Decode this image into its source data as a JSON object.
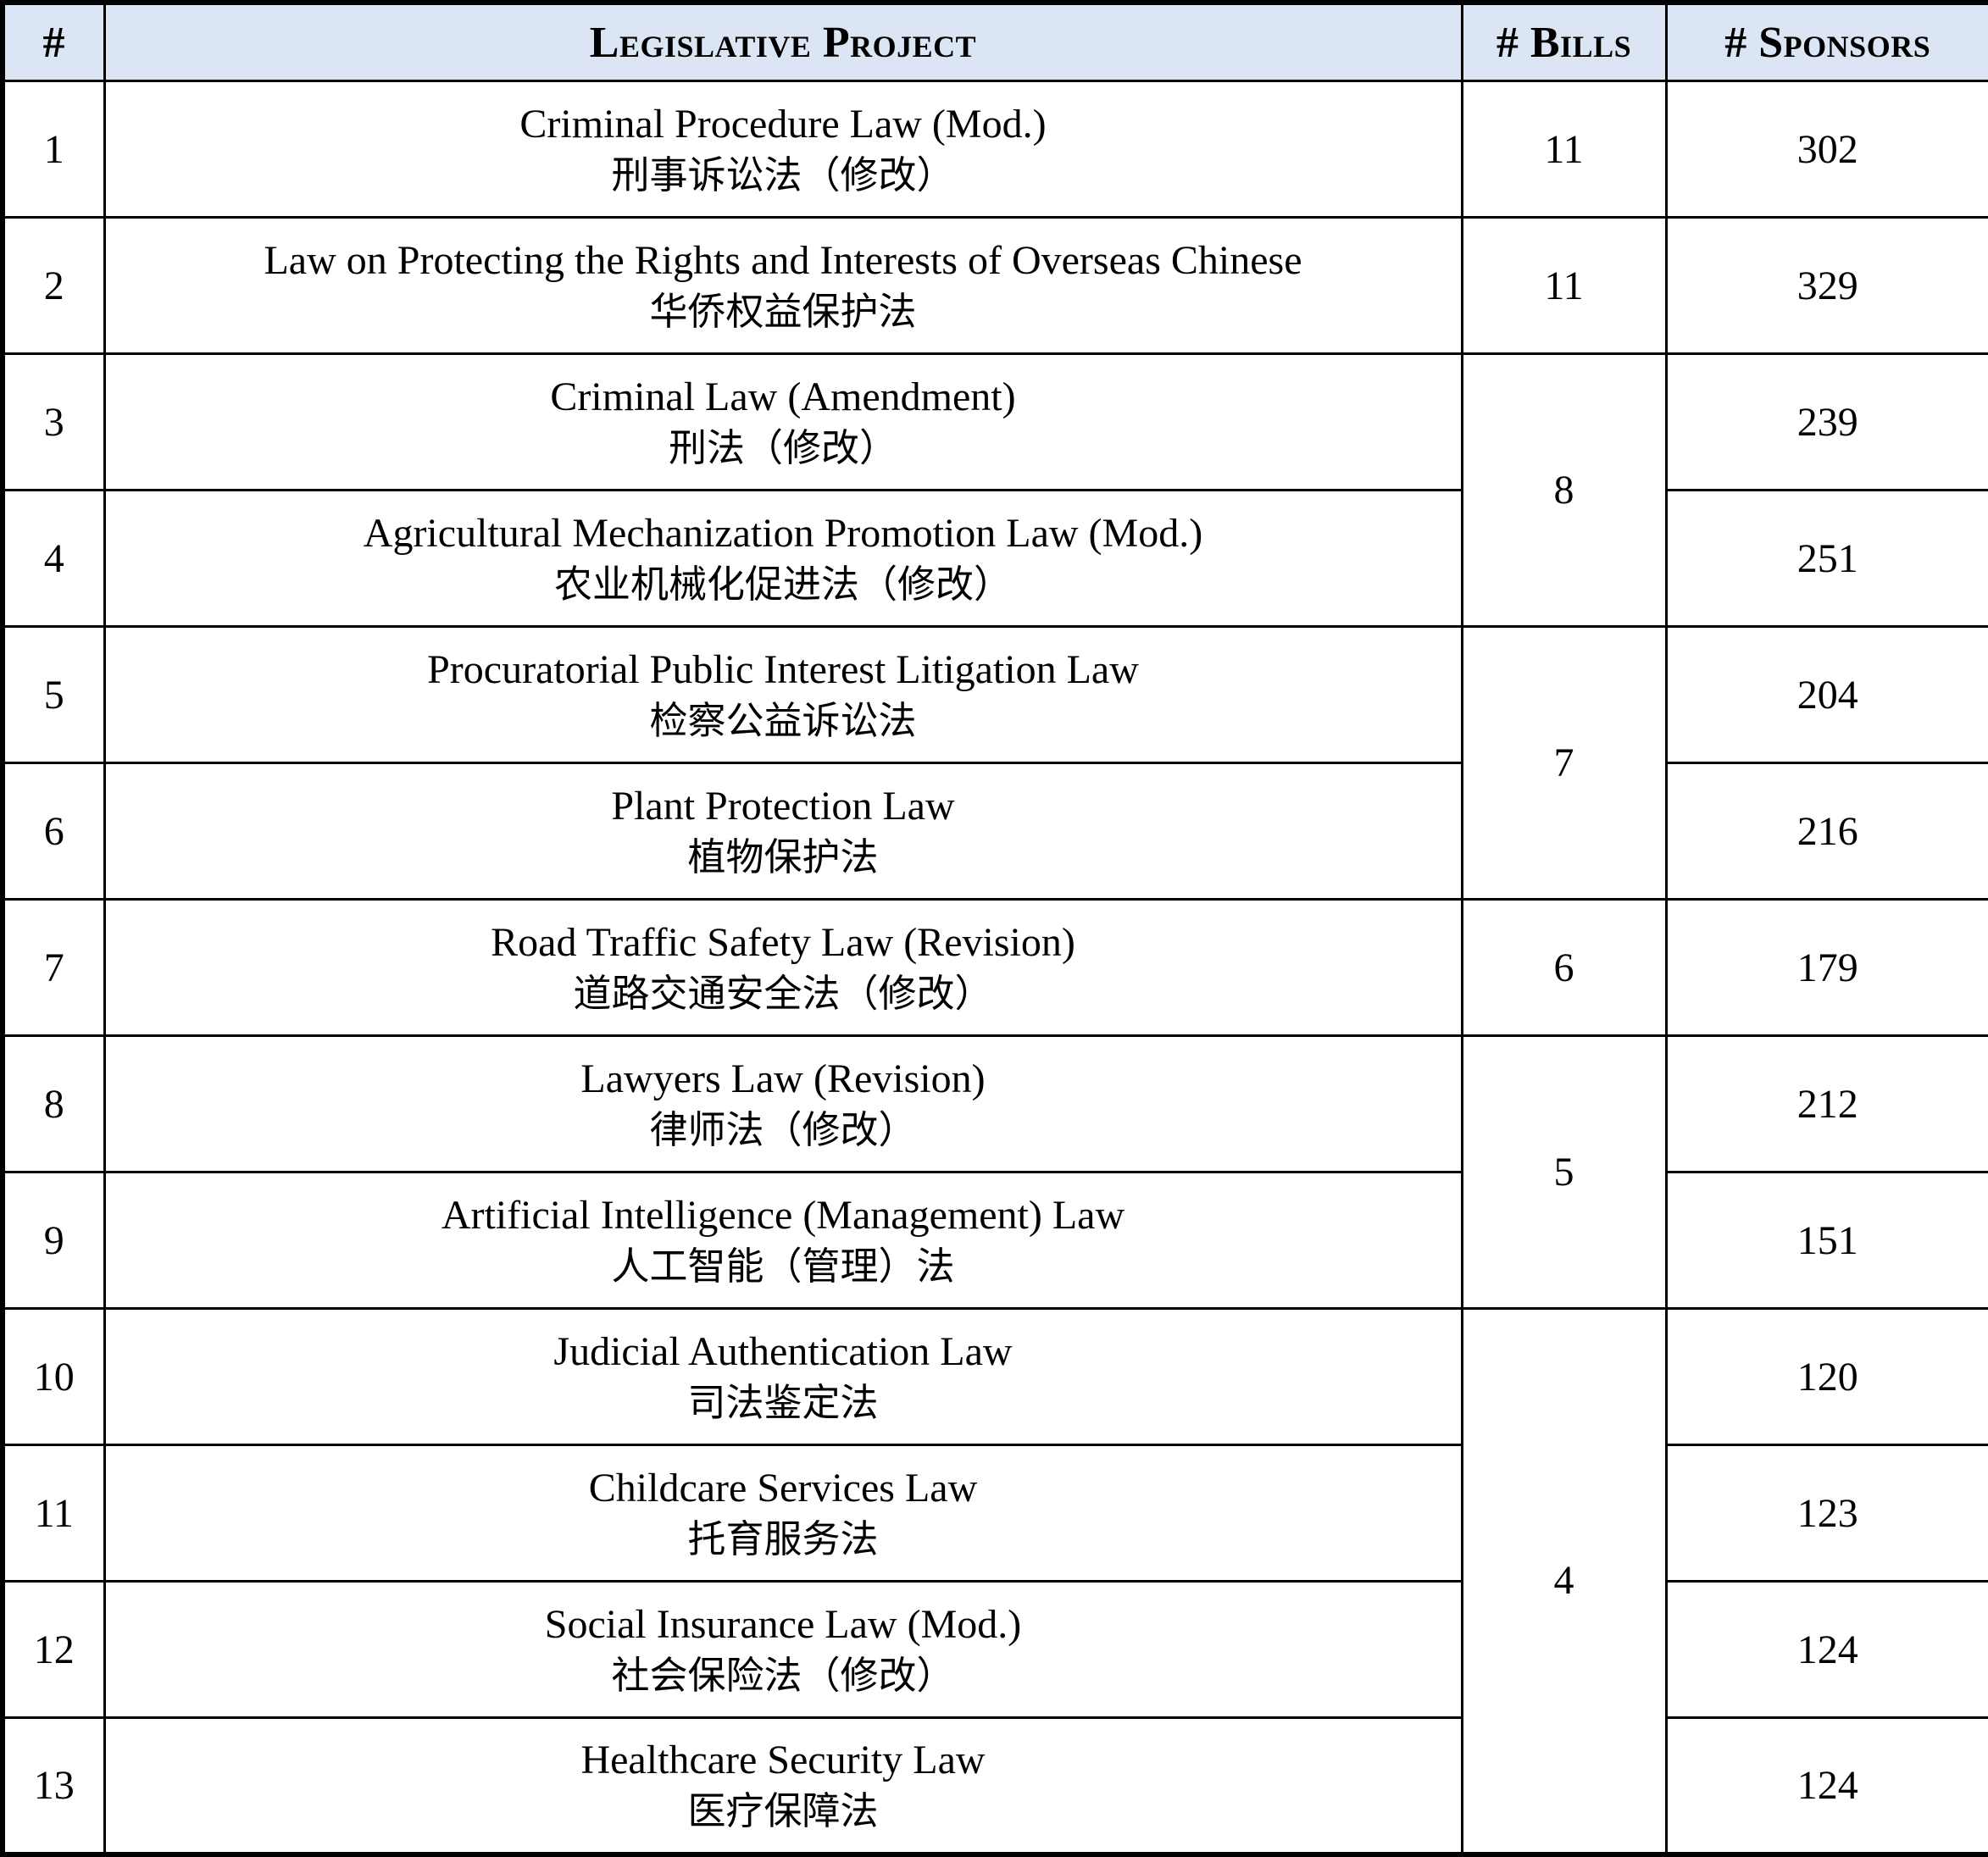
{
  "table": {
    "header_bg": "#dbe5f3",
    "headers": {
      "num": "#",
      "project": "Legislative Project",
      "bills": "# Bills",
      "sponsors": "# Sponsors"
    },
    "rows": [
      {
        "num": "1",
        "name_en": "Criminal Procedure Law (Mod.)",
        "name_zh": "刑事诉讼法（修改）",
        "bills": "11",
        "bills_rowspan": 1,
        "sponsors": "302"
      },
      {
        "num": "2",
        "name_en": "Law on Protecting the Rights and Interests of Overseas Chinese",
        "name_zh": "华侨权益保护法",
        "bills": "11",
        "bills_rowspan": 1,
        "sponsors": "329"
      },
      {
        "num": "3",
        "name_en": "Criminal Law (Amendment)",
        "name_zh": "刑法（修改）",
        "bills": "8",
        "bills_rowspan": 2,
        "sponsors": "239"
      },
      {
        "num": "4",
        "name_en": "Agricultural Mechanization Promotion Law (Mod.)",
        "name_zh": "农业机械化促进法（修改）",
        "sponsors": "251"
      },
      {
        "num": "5",
        "name_en": "Procuratorial Public Interest Litigation Law",
        "name_zh": "检察公益诉讼法",
        "bills": "7",
        "bills_rowspan": 2,
        "sponsors": "204"
      },
      {
        "num": "6",
        "name_en": "Plant Protection Law",
        "name_zh": "植物保护法",
        "sponsors": "216"
      },
      {
        "num": "7",
        "name_en": "Road Traffic Safety Law (Revision)",
        "name_zh": "道路交通安全法（修改）",
        "bills": "6",
        "bills_rowspan": 1,
        "sponsors": "179"
      },
      {
        "num": "8",
        "name_en": "Lawyers Law (Revision)",
        "name_zh": "律师法（修改）",
        "bills": "5",
        "bills_rowspan": 2,
        "sponsors": "212"
      },
      {
        "num": "9",
        "name_en": "Artificial Intelligence (Management) Law",
        "name_zh": "人工智能（管理）法",
        "sponsors": "151"
      },
      {
        "num": "10",
        "name_en": "Judicial Authentication Law",
        "name_zh": "司法鉴定法",
        "bills": "4",
        "bills_rowspan": 4,
        "sponsors": "120"
      },
      {
        "num": "11",
        "name_en": "Childcare Services Law",
        "name_zh": "托育服务法",
        "sponsors": "123"
      },
      {
        "num": "12",
        "name_en": "Social Insurance Law (Mod.)",
        "name_zh": "社会保险法（修改）",
        "sponsors": "124"
      },
      {
        "num": "13",
        "name_en": "Healthcare Security Law",
        "name_zh": "医疗保障法",
        "sponsors": "124"
      }
    ]
  }
}
